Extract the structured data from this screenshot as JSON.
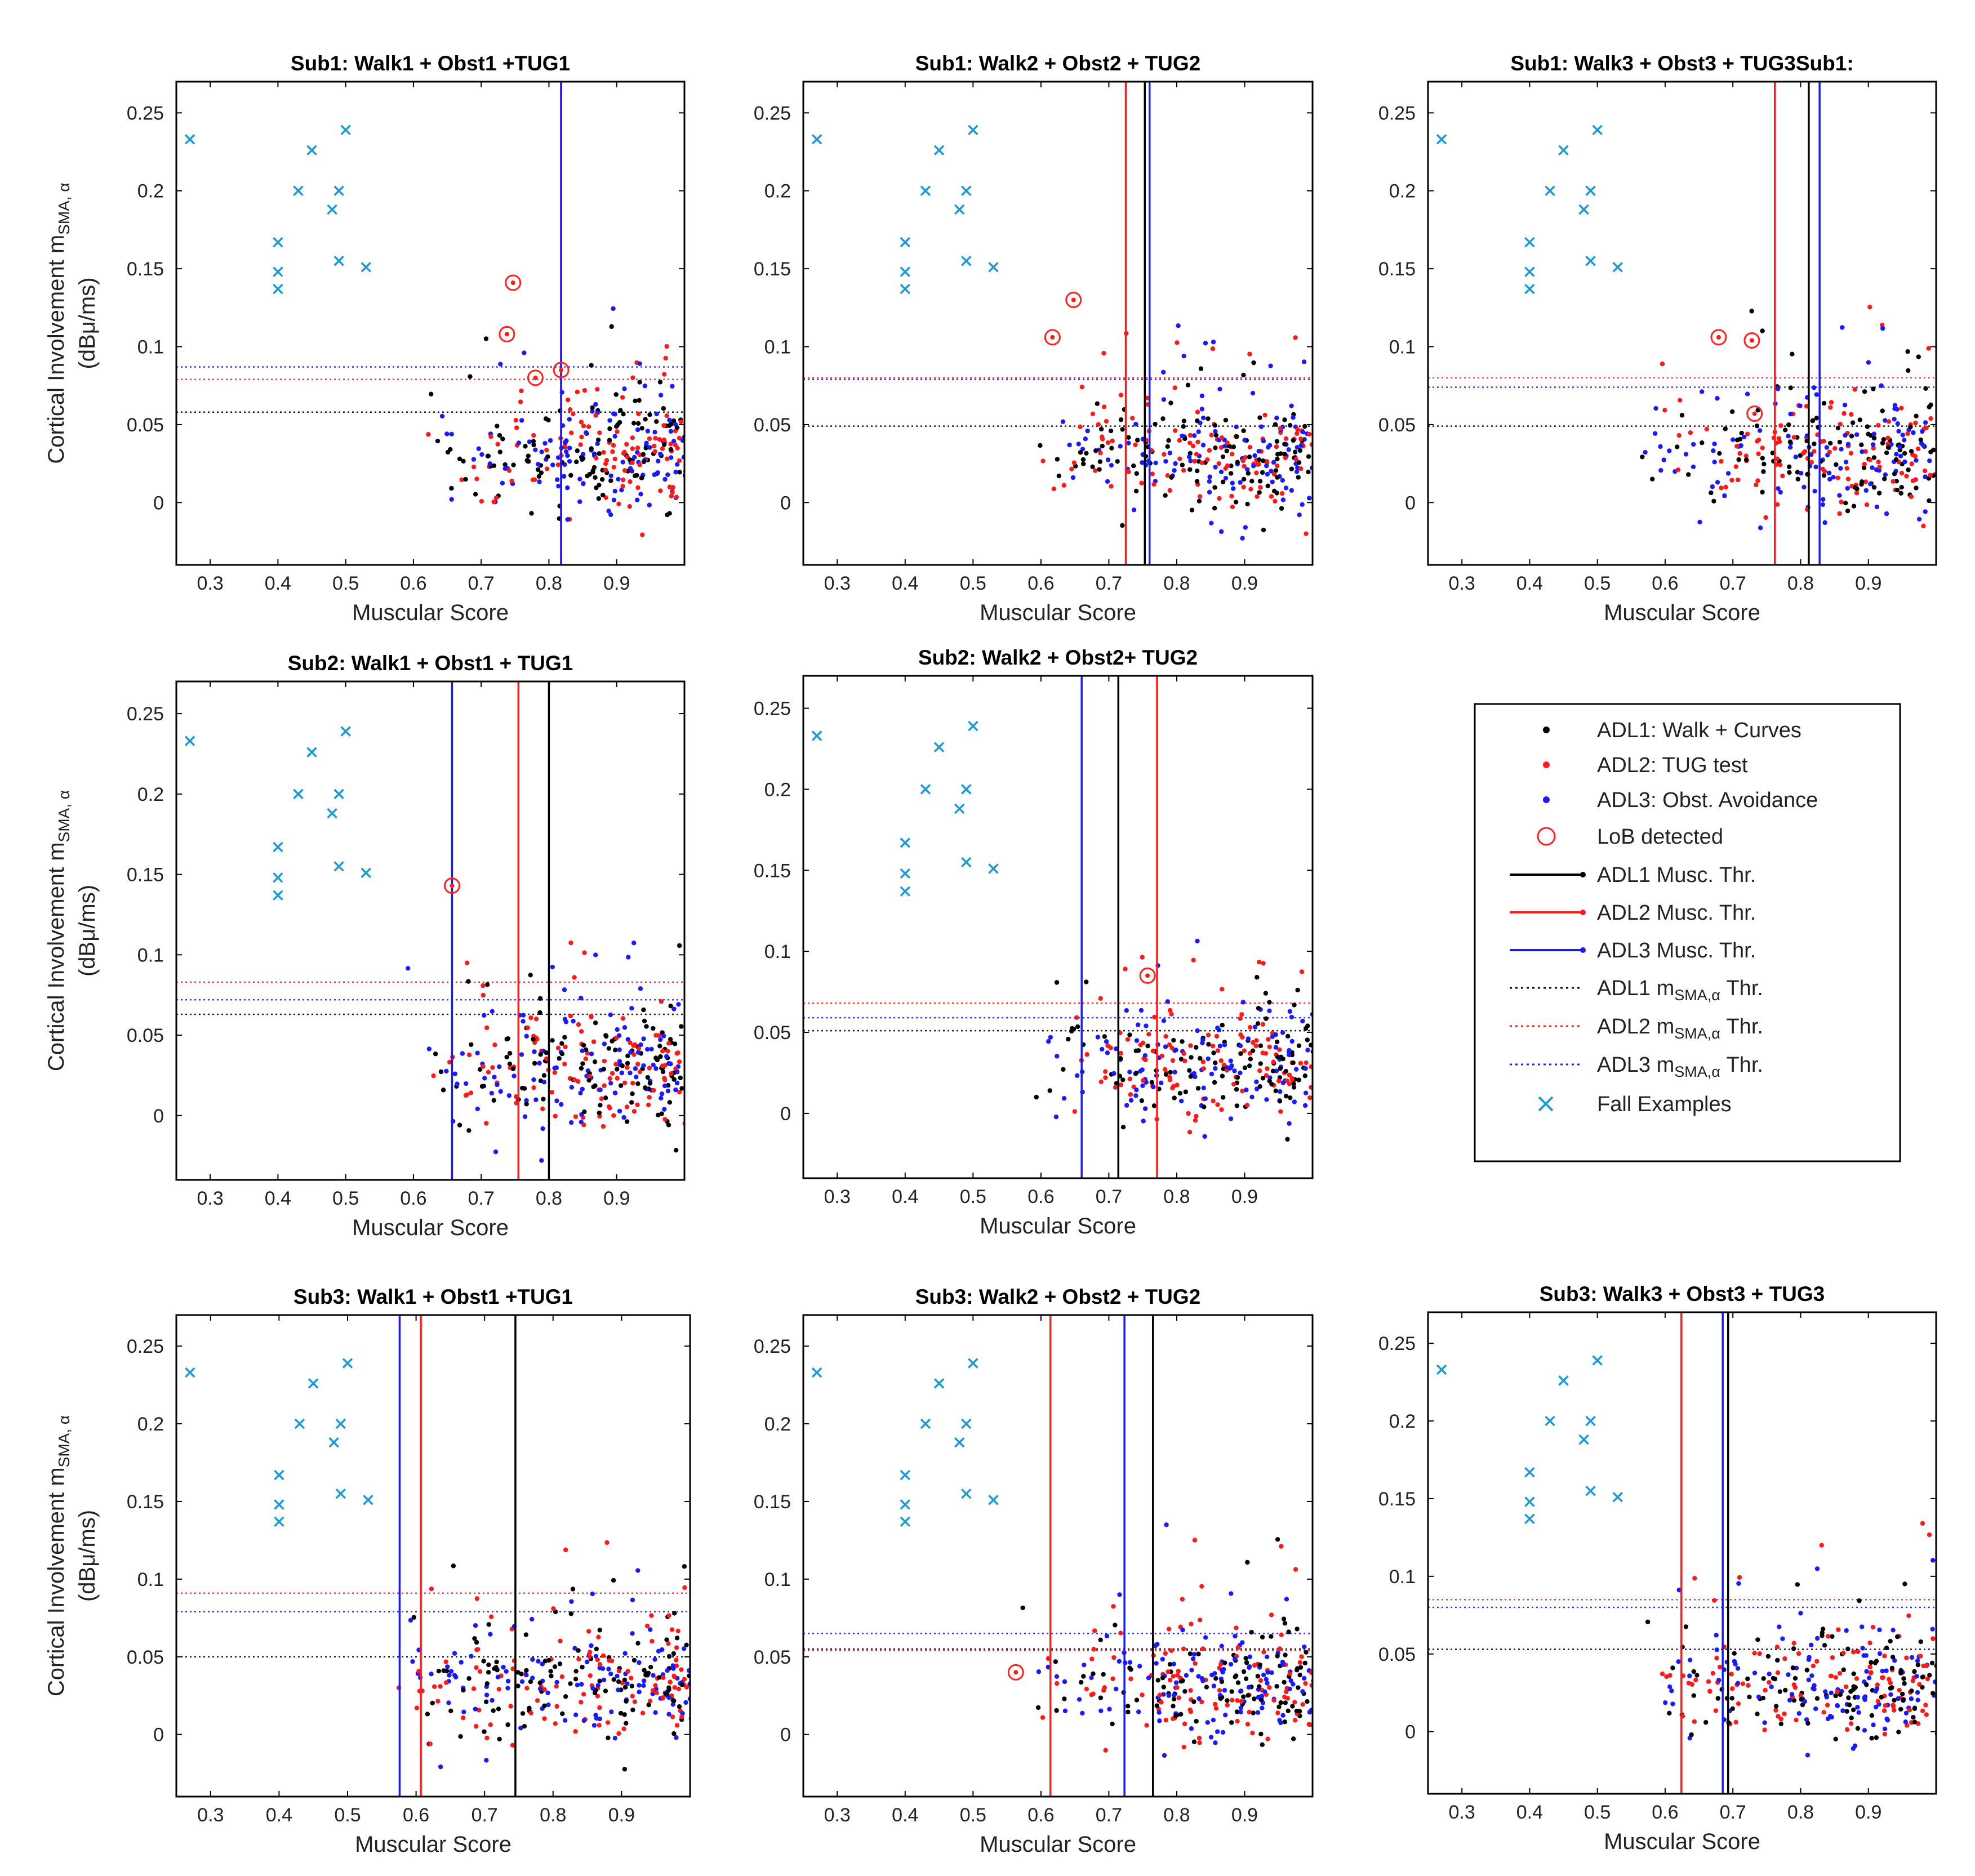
{
  "chart_data": {
    "type": "scatter",
    "colors": {
      "adl1": "#000000",
      "adl2": "#ff1a1a",
      "adl3": "#1a1aff",
      "lob": "#ff2020",
      "fall": "#1a9ad6",
      "frame": "#000000"
    },
    "x_label": "Muscular Score",
    "y_label_line1": "Cortical Involvement  m",
    "y_label_sub": "SMA, α",
    "y_label_line2": "(dBμ/ms)",
    "xlim": [
      0.25,
      1.0
    ],
    "ylim": [
      -0.04,
      0.27
    ],
    "x_ticks": [
      "0.3",
      "0.4",
      "0.5",
      "0.6",
      "0.7",
      "0.8",
      "0.9"
    ],
    "y_ticks": [
      "0",
      "0.05",
      "0.1",
      "0.15",
      "0.2",
      "0.25"
    ],
    "fall_examples": [
      [
        0.27,
        0.233
      ],
      [
        0.4,
        0.167
      ],
      [
        0.4,
        0.148
      ],
      [
        0.4,
        0.137
      ],
      [
        0.43,
        0.2
      ],
      [
        0.45,
        0.226
      ],
      [
        0.48,
        0.188
      ],
      [
        0.49,
        0.2
      ],
      [
        0.49,
        0.155
      ],
      [
        0.5,
        0.239
      ],
      [
        0.53,
        0.151
      ]
    ],
    "legend": {
      "adl1": "ADL1: Walk + Curves",
      "adl2": "ADL2: TUG test",
      "adl3": "ADL3: Obst. Avoidance",
      "lob": "LoB detected",
      "musc1": "ADL1 Musc. Thr.",
      "musc2": "ADL2 Musc. Thr.",
      "musc3": "ADL3 Musc. Thr.",
      "sma_prefix": "m",
      "sma_sub": "SMA,α",
      "sma1_name": "ADL1",
      "sma2_name": "ADL2",
      "sma3_name": "ADL3",
      "sma_suffix": "Thr.",
      "fall": "Fall Examples"
    },
    "panels": [
      {
        "title": "Sub1: Walk1 + Obst1 +TUG1",
        "musc_thr": {
          "adl1": 0.818,
          "adl2": 0.818,
          "adl3": 0.818
        },
        "sma_thr": {
          "adl1": 0.058,
          "adl2": 0.079,
          "adl3": 0.087
        },
        "lob": [
          [
            0.747,
            0.141
          ],
          [
            0.738,
            0.108
          ],
          [
            0.78,
            0.08
          ],
          [
            0.818,
            0.085
          ]
        ],
        "cloud_x": [
          0.62,
          1.0
        ],
        "seed": 11
      },
      {
        "title": "Sub1: Walk2 + Obst2 + TUG2",
        "musc_thr": {
          "adl1": 0.753,
          "adl2": 0.725,
          "adl3": 0.76
        },
        "sma_thr": {
          "adl1": 0.049,
          "adl2": 0.08,
          "adl3": 0.079
        },
        "lob": [
          [
            0.648,
            0.13
          ],
          [
            0.617,
            0.106
          ]
        ],
        "cloud_x": [
          0.58,
          1.0
        ],
        "seed": 23
      },
      {
        "title": "Sub1: Walk3 + Obst3 + TUG3Sub1:",
        "musc_thr": {
          "adl1": 0.812,
          "adl2": 0.762,
          "adl3": 0.828
        },
        "sma_thr": {
          "adl1": 0.049,
          "adl2": 0.08,
          "adl3": 0.074
        },
        "lob": [
          [
            0.679,
            0.106
          ],
          [
            0.728,
            0.104
          ],
          [
            0.732,
            0.057
          ]
        ],
        "cloud_x": [
          0.55,
          1.0
        ],
        "seed": 37
      },
      {
        "title": "Sub2: Walk1 + Obst1 + TUG1",
        "musc_thr": {
          "adl1": 0.8,
          "adl2": 0.755,
          "adl3": 0.657
        },
        "sma_thr": {
          "adl1": 0.063,
          "adl2": 0.083,
          "adl3": 0.072
        },
        "lob": [
          [
            0.657,
            0.143
          ]
        ],
        "cloud_x": [
          0.6,
          1.0
        ],
        "seed": 41
      },
      {
        "title": "Sub2: Walk2 + Obst2+ TUG2",
        "musc_thr": {
          "adl1": 0.714,
          "adl2": 0.771,
          "adl3": 0.66
        },
        "sma_thr": {
          "adl1": 0.051,
          "adl2": 0.068,
          "adl3": 0.059
        },
        "lob": [
          [
            0.757,
            0.085
          ]
        ],
        "cloud_x": [
          0.57,
          1.0
        ],
        "seed": 53
      },
      {
        "title": "Sub3: Walk1 + Obst1 +TUG1",
        "musc_thr": {
          "adl1": 0.745,
          "adl2": 0.607,
          "adl3": 0.576
        },
        "sma_thr": {
          "adl1": 0.05,
          "adl2": 0.091,
          "adl3": 0.079
        },
        "lob": [],
        "cloud_x": [
          0.55,
          1.0
        ],
        "seed": 67
      },
      {
        "title": "Sub3: Walk2 + Obst2 + TUG2",
        "musc_thr": {
          "adl1": 0.765,
          "adl2": 0.614,
          "adl3": 0.723
        },
        "sma_thr": {
          "adl1": 0.055,
          "adl2": 0.054,
          "adl3": 0.065
        },
        "lob": [
          [
            0.563,
            0.04
          ]
        ],
        "cloud_x": [
          0.58,
          1.0
        ],
        "seed": 71
      },
      {
        "title": "Sub3: Walk3 + Obst3 + TUG3",
        "musc_thr": {
          "adl1": 0.693,
          "adl2": 0.624,
          "adl3": 0.685
        },
        "sma_thr": {
          "adl1": 0.053,
          "adl2": 0.085,
          "adl3": 0.08
        },
        "lob": [],
        "cloud_x": [
          0.56,
          1.0
        ],
        "seed": 83
      }
    ]
  }
}
